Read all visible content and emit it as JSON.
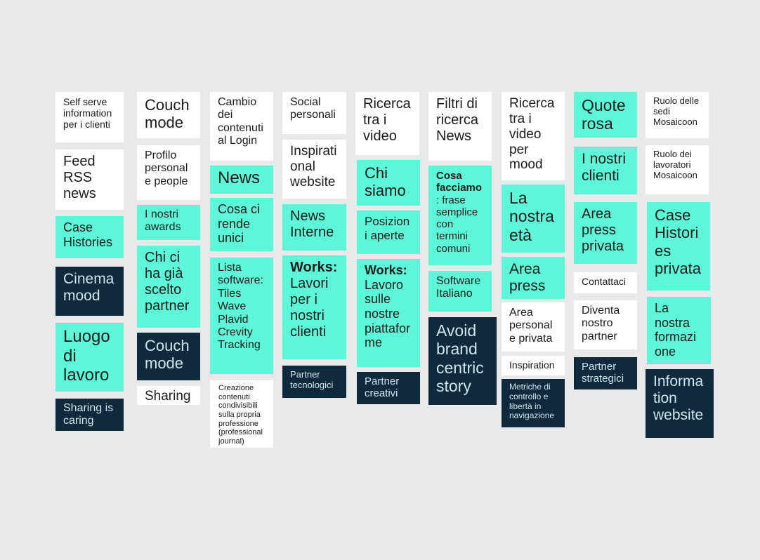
{
  "colors": {
    "white": "#ffffff",
    "teal": "#5ef6d8",
    "navy": "#0f2a3d",
    "background": "#e9e9e9"
  },
  "columns": [
    {
      "notes": [
        {
          "text": "Self serve information per i clienti",
          "color": "white"
        },
        {
          "text": "Feed RSS news",
          "color": "white"
        },
        {
          "text": "Case Histories",
          "color": "teal"
        },
        {
          "text": "Cinema mood",
          "color": "navy"
        },
        {
          "text": "Luogo di lavoro",
          "color": "teal"
        },
        {
          "text": "Sharing is caring",
          "color": "navy"
        }
      ]
    },
    {
      "notes": [
        {
          "text": "Couch mode",
          "color": "white"
        },
        {
          "text": "Profilo personal e people",
          "color": "white"
        },
        {
          "text": "I nostri awards",
          "color": "teal"
        },
        {
          "text": "Chi ci ha già scelto partner",
          "color": "teal"
        },
        {
          "text": "Couch mode",
          "color": "navy"
        },
        {
          "text": "Sharing",
          "color": "white"
        }
      ]
    },
    {
      "notes": [
        {
          "text": "Cambio dei contenuti al Login",
          "color": "white"
        },
        {
          "text": "News",
          "color": "teal"
        },
        {
          "text": "Cosa ci rende unici",
          "color": "teal"
        },
        {
          "text": "Lista software: Tiles Wave Plavid Crevity Tracking",
          "color": "teal"
        },
        {
          "text": "Creazione contenuti condivisibili sulla propria professione (professional journal)",
          "color": "white"
        }
      ]
    },
    {
      "notes": [
        {
          "text": "Social personali",
          "color": "white"
        },
        {
          "text": "Inspirational website",
          "color": "white"
        },
        {
          "text": "News Interne",
          "color": "teal"
        },
        {
          "title": "Works:",
          "text": "Lavori per i nostri clienti",
          "color": "teal"
        },
        {
          "text": "Partner tecnologici",
          "color": "navy"
        }
      ]
    },
    {
      "notes": [
        {
          "text": "Ricerca tra i video",
          "color": "white"
        },
        {
          "text": "Chi siamo",
          "color": "teal"
        },
        {
          "text": "Posizioni aperte",
          "color": "teal"
        },
        {
          "title": "Works:",
          "text": "Lavoro sulle nostre piattaforme",
          "color": "teal"
        },
        {
          "text": "Partner creativi",
          "color": "navy"
        }
      ]
    },
    {
      "notes": [
        {
          "text": "Filtri di ricerca News",
          "color": "white"
        },
        {
          "title": "Cosa facciamo",
          "text": ": frase semplice con termini comuni",
          "color": "teal"
        },
        {
          "text": "Software Italiano",
          "color": "teal"
        },
        {
          "text": "Avoid brand centric story",
          "color": "navy"
        }
      ]
    },
    {
      "notes": [
        {
          "text": "Ricerca tra i video per mood",
          "color": "white"
        },
        {
          "text": "La nostra età",
          "color": "teal"
        },
        {
          "text": "Area press",
          "color": "teal"
        },
        {
          "text": "Area personale privata",
          "color": "white"
        },
        {
          "text": "Inspiration",
          "color": "white"
        },
        {
          "text": "Metriche di controllo e libertà in navigazione",
          "color": "navy"
        }
      ]
    },
    {
      "notes": [
        {
          "text": "Quote rosa",
          "color": "teal"
        },
        {
          "text": "I nostri clienti",
          "color": "teal"
        },
        {
          "text": "Area press privata",
          "color": "teal"
        },
        {
          "text": "Contattaci",
          "color": "white"
        },
        {
          "text": "Diventa nostro partner",
          "color": "white"
        },
        {
          "text": "Partner strategici",
          "color": "navy"
        }
      ]
    },
    {
      "notes": [
        {
          "text": "Ruolo delle sedi Mosaicoon",
          "color": "white"
        },
        {
          "text": "Ruolo dei lavoratori Mosaicoon",
          "color": "white"
        },
        {
          "text": "Case Histories privata",
          "color": "teal"
        },
        {
          "text": "La nostra formazione",
          "color": "teal"
        },
        {
          "text": "Information website",
          "color": "navy"
        }
      ]
    }
  ]
}
